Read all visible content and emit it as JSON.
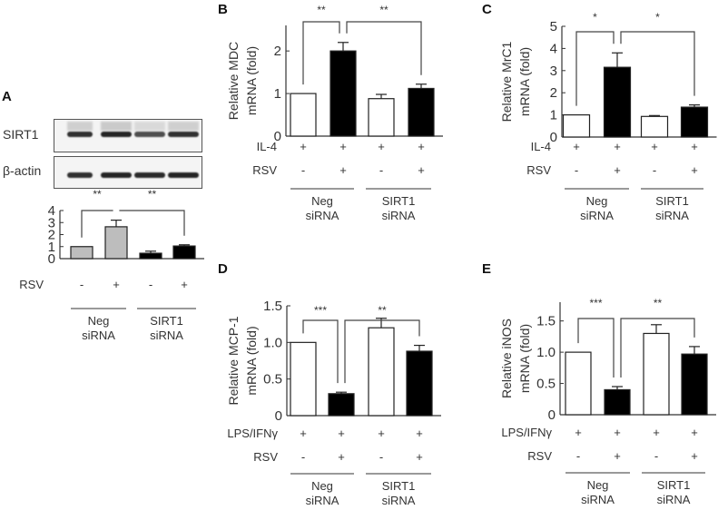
{
  "panels": {
    "A": {
      "letter": "A"
    },
    "B": {
      "letter": "B"
    },
    "C": {
      "letter": "C"
    },
    "D": {
      "letter": "D"
    },
    "E": {
      "letter": "E"
    }
  },
  "blot": {
    "rows": [
      {
        "label": "SIRT1",
        "band_intensity": [
          0.85,
          0.95,
          0.6,
          0.85
        ]
      },
      {
        "label": "β-actin",
        "band_intensity": [
          0.85,
          0.95,
          0.9,
          0.95
        ]
      }
    ]
  },
  "groups": [
    "Neg siRNA",
    "SIRT1 siRNA"
  ],
  "chart_data": [
    {
      "panel": "A",
      "type": "bar",
      "title": "",
      "ylabel": "",
      "ylim": [
        0,
        4
      ],
      "yticks": [
        0,
        1,
        2,
        3,
        4
      ],
      "categories": [
        "Neg siRNA RSV-",
        "Neg siRNA RSV+",
        "SIRT1 siRNA RSV-",
        "SIRT1 siRNA RSV+"
      ],
      "values": [
        1.0,
        2.65,
        0.45,
        1.05
      ],
      "errors": [
        0,
        0.55,
        0.17,
        0.1
      ],
      "colors": [
        "#bdbdbd",
        "#bdbdbd",
        "#000000",
        "#000000"
      ],
      "treatments": [
        {
          "label": "RSV",
          "values": [
            "-",
            "+",
            "-",
            "+"
          ]
        }
      ],
      "groups": [
        {
          "label_line1": "Neg",
          "label_line2": "siRNA"
        },
        {
          "label_line1": "SIRT1",
          "label_line2": "siRNA"
        }
      ],
      "significance": [
        {
          "from": 0,
          "to": 1,
          "label": "**"
        },
        {
          "from": 1,
          "to": 3,
          "label": "**"
        }
      ]
    },
    {
      "panel": "B",
      "type": "bar",
      "ylabel_line1": "Relative MDC",
      "ylabel_line2": "mRNA (fold)",
      "ylim": [
        0,
        2.6
      ],
      "yticks": [
        0,
        1,
        2
      ],
      "categories": [
        "Neg siRNA RSV-",
        "Neg siRNA RSV+",
        "SIRT1 siRNA RSV-",
        "SIRT1 siRNA RSV+"
      ],
      "values": [
        1.0,
        2.0,
        0.88,
        1.12
      ],
      "errors": [
        0,
        0.2,
        0.1,
        0.1
      ],
      "colors": [
        "#ffffff",
        "#000000",
        "#ffffff",
        "#000000"
      ],
      "treatments": [
        {
          "label": "IL-4",
          "values": [
            "+",
            "+",
            "+",
            "+"
          ]
        },
        {
          "label": "RSV",
          "values": [
            "-",
            "+",
            "-",
            "+"
          ]
        }
      ],
      "groups": [
        {
          "label_line1": "Neg",
          "label_line2": "siRNA"
        },
        {
          "label_line1": "SIRT1",
          "label_line2": "siRNA"
        }
      ],
      "significance": [
        {
          "from": 0,
          "to": 1,
          "label": "**"
        },
        {
          "from": 1,
          "to": 3,
          "label": "**"
        }
      ]
    },
    {
      "panel": "C",
      "type": "bar",
      "ylabel_line1": "Relative MrC1",
      "ylabel_line2": "mRNA (fold)",
      "ylim": [
        0,
        5
      ],
      "yticks": [
        0,
        1,
        2,
        3,
        4,
        5
      ],
      "categories": [
        "Neg siRNA RSV-",
        "Neg siRNA RSV+",
        "SIRT1 siRNA RSV-",
        "SIRT1 siRNA RSV+"
      ],
      "values": [
        1.0,
        3.15,
        0.93,
        1.35
      ],
      "errors": [
        0,
        0.65,
        0.04,
        0.1
      ],
      "colors": [
        "#ffffff",
        "#000000",
        "#ffffff",
        "#000000"
      ],
      "treatments": [
        {
          "label": "IL-4",
          "values": [
            "+",
            "+",
            "+",
            "+"
          ]
        },
        {
          "label": "RSV",
          "values": [
            "-",
            "+",
            "-",
            "+"
          ]
        }
      ],
      "groups": [
        {
          "label_line1": "Neg",
          "label_line2": "siRNA"
        },
        {
          "label_line1": "SIRT1",
          "label_line2": "siRNA"
        }
      ],
      "significance": [
        {
          "from": 0,
          "to": 1,
          "label": "*"
        },
        {
          "from": 1,
          "to": 3,
          "label": "*"
        }
      ]
    },
    {
      "panel": "D",
      "type": "bar",
      "ylabel_line1": "Relative MCP-1",
      "ylabel_line2": "mRNA (fold)",
      "ylim": [
        0,
        1.5
      ],
      "yticks": [
        0,
        0.5,
        1.0,
        1.5
      ],
      "ytick_labels": [
        "0",
        "0.5",
        "1.0",
        "1.5"
      ],
      "categories": [
        "Neg siRNA RSV-",
        "Neg siRNA RSV+",
        "SIRT1 siRNA RSV-",
        "SIRT1 siRNA RSV+"
      ],
      "values": [
        1.0,
        0.3,
        1.2,
        0.88
      ],
      "errors": [
        0,
        0.02,
        0.13,
        0.08
      ],
      "colors": [
        "#ffffff",
        "#000000",
        "#ffffff",
        "#000000"
      ],
      "treatments": [
        {
          "label": "LPS/IFNγ",
          "values": [
            "+",
            "+",
            "+",
            "+"
          ]
        },
        {
          "label": "RSV",
          "values": [
            "-",
            "+",
            "-",
            "+"
          ]
        }
      ],
      "groups": [
        {
          "label_line1": "Neg",
          "label_line2": "siRNA"
        },
        {
          "label_line1": "SIRT1",
          "label_line2": "siRNA"
        }
      ],
      "significance": [
        {
          "from": 0,
          "to": 1,
          "label": "***"
        },
        {
          "from": 1,
          "to": 3,
          "label": "**"
        }
      ]
    },
    {
      "panel": "E",
      "type": "bar",
      "ylabel_line1": "Relative iNOS",
      "ylabel_line2": "mRNA (fold)",
      "ylim": [
        0,
        1.8
      ],
      "yticks": [
        0,
        0.5,
        1.0,
        1.5
      ],
      "ytick_labels": [
        "0",
        "0.5",
        "1.0",
        "1.5"
      ],
      "categories": [
        "Neg siRNA RSV-",
        "Neg siRNA RSV+",
        "SIRT1 siRNA RSV-",
        "SIRT1 siRNA RSV+"
      ],
      "values": [
        1.0,
        0.4,
        1.3,
        0.97
      ],
      "errors": [
        0,
        0.05,
        0.14,
        0.12
      ],
      "colors": [
        "#ffffff",
        "#000000",
        "#ffffff",
        "#000000"
      ],
      "treatments": [
        {
          "label": "LPS/IFNγ",
          "values": [
            "+",
            "+",
            "+",
            "+"
          ]
        },
        {
          "label": "RSV",
          "values": [
            "-",
            "+",
            "-",
            "+"
          ]
        }
      ],
      "groups": [
        {
          "label_line1": "Neg",
          "label_line2": "siRNA"
        },
        {
          "label_line1": "SIRT1",
          "label_line2": "siRNA"
        }
      ],
      "significance": [
        {
          "from": 0,
          "to": 1,
          "label": "***"
        },
        {
          "from": 1,
          "to": 3,
          "label": "**"
        }
      ]
    }
  ]
}
